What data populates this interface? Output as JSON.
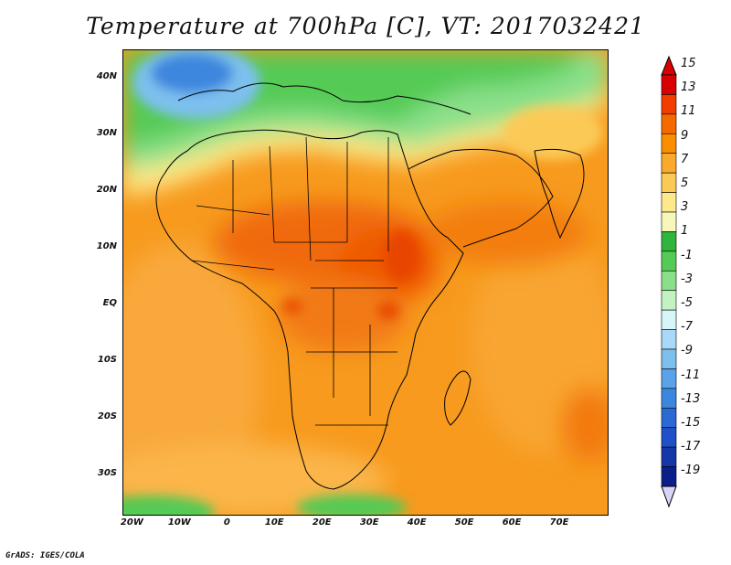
{
  "title": "Temperature at 700hPa [C], VT: 2017032421",
  "credit": "GrADS: IGES/COLA",
  "map": {
    "lon_range": [
      -22,
      80
    ],
    "lat_range": [
      -37,
      45
    ],
    "lat_ticks": [
      {
        "value": 40,
        "label": "40N"
      },
      {
        "value": 30,
        "label": "30N"
      },
      {
        "value": 20,
        "label": "20N"
      },
      {
        "value": 10,
        "label": "10N"
      },
      {
        "value": 0,
        "label": "EQ"
      },
      {
        "value": -10,
        "label": "10S"
      },
      {
        "value": -20,
        "label": "20S"
      },
      {
        "value": -30,
        "label": "30S"
      }
    ],
    "lon_ticks": [
      {
        "value": -20,
        "label": "20W"
      },
      {
        "value": -10,
        "label": "10W"
      },
      {
        "value": 0,
        "label": "0"
      },
      {
        "value": 10,
        "label": "10E"
      },
      {
        "value": 20,
        "label": "20E"
      },
      {
        "value": 30,
        "label": "30E"
      },
      {
        "value": 40,
        "label": "40E"
      },
      {
        "value": 50,
        "label": "50E"
      },
      {
        "value": 60,
        "label": "60E"
      },
      {
        "value": 70,
        "label": "70E"
      }
    ]
  },
  "colorbar": {
    "labels": [
      "15",
      "13",
      "11",
      "9",
      "7",
      "5",
      "3",
      "1",
      "-1",
      "-3",
      "-5",
      "-7",
      "-9",
      "-11",
      "-13",
      "-15",
      "-17",
      "-19"
    ],
    "colors": [
      "#d80000",
      "#f23c00",
      "#f56a00",
      "#f98e00",
      "#faaa2a",
      "#fbca56",
      "#fde98a",
      "#f6f7b8",
      "#2fb43c",
      "#55ca54",
      "#8ae08a",
      "#c2f2c2",
      "#d7f6fa",
      "#a9d9f6",
      "#7dc0ee",
      "#5ba3e8",
      "#3c87de",
      "#2a6ad2",
      "#1f50c8",
      "#1537a8",
      "#0b1f8a"
    ],
    "over_color": "#d80000",
    "under_color": "#d8d4f6"
  }
}
